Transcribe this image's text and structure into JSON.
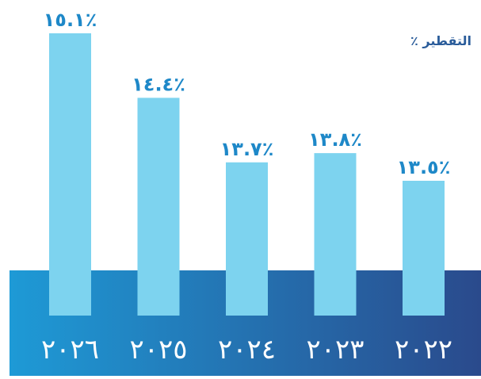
{
  "chart_data": {
    "type": "bar",
    "categories": [
      "٢٠٢٦",
      "٢٠٢٥",
      "٢٠٢٤",
      "٢٠٢٣",
      "٢٠٢٢"
    ],
    "values": [
      15.1,
      14.4,
      13.7,
      13.8,
      13.5
    ],
    "data_labels": [
      "٪١٥.١",
      "٪١٤.٤",
      "٪١٣.٧",
      "٪١٣.٨",
      "٪١٣.٥"
    ],
    "series_label": "التقطير ٪",
    "colors": {
      "bar": "#7dd3ef",
      "label": "#1e88c8",
      "axis_text": "#ffffff",
      "band_start": "#1e9ad6",
      "band_end": "#2a4a8c",
      "series_label": "#2a5c9a"
    }
  }
}
